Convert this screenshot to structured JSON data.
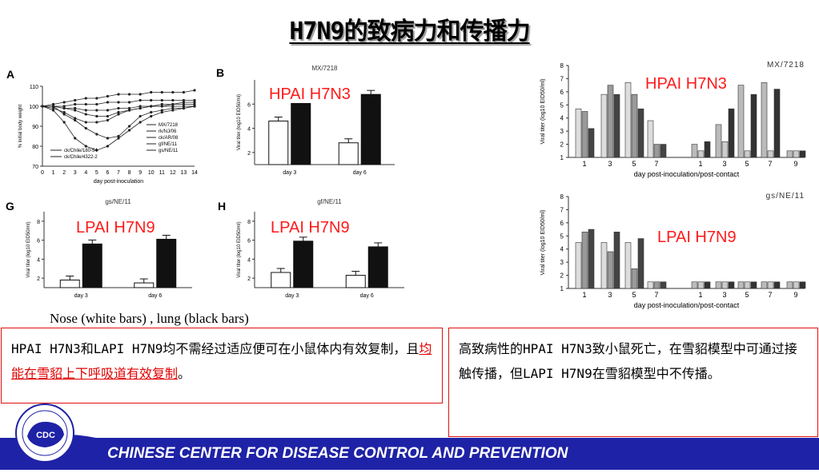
{
  "title": "H7N9的致病力和传播力",
  "panelA": {
    "letter": "A",
    "ylabel": "% initial body weight",
    "xlabel": "day post-inoculation",
    "yticks": [
      "70",
      "80",
      "90",
      "100",
      "110"
    ],
    "xticks": [
      "0",
      "1",
      "2",
      "3",
      "4",
      "5",
      "6",
      "7",
      "8",
      "9",
      "10",
      "11",
      "12",
      "13",
      "14"
    ],
    "legend_right": [
      "MX/7218",
      "rk/NJ/06",
      "ck/AR/08",
      "gf/NE/11",
      "gs/NE/11"
    ],
    "legend_left": [
      "ck/Chile/180-54",
      "ck/Chile/4322-2"
    ]
  },
  "panelB": {
    "letter": "B",
    "title": "MX/7218",
    "ylabel": "Viral titer (log10 EID50/ml)",
    "yticks": [
      "2",
      "4",
      "6"
    ],
    "xticks": [
      "day 3",
      "day 6"
    ]
  },
  "panelG": {
    "letter": "G",
    "title": "gs/NE/11",
    "ylabel": "Viral titer (log10 EID50/ml)",
    "yticks": [
      "2",
      "4",
      "6",
      "8"
    ],
    "xticks": [
      "day 3",
      "day 6"
    ]
  },
  "panelH": {
    "letter": "H",
    "title": "gf/NE/11",
    "ylabel": "Viral titer (log10 EID50/ml)",
    "yticks": [
      "2",
      "4",
      "6",
      "8"
    ],
    "xticks": [
      "day 3",
      "day 6"
    ]
  },
  "panelTR": {
    "title": "MX/7218",
    "ylabel": "Viral titer (log10 EID50/ml)",
    "yticks": [
      "1",
      "2",
      "3",
      "4",
      "5",
      "6",
      "7",
      "8"
    ],
    "xticks": [
      "1",
      "3",
      "5",
      "7",
      "1",
      "3",
      "5",
      "7",
      "9"
    ],
    "xlabel": "day post-inoculation/post-contact"
  },
  "panelBR": {
    "title": "gs/NE/11",
    "ylabel": "Viral titer (log10 EID50/ml)",
    "yticks": [
      "1",
      "2",
      "3",
      "4",
      "5",
      "6",
      "7",
      "8"
    ],
    "xticks": [
      "1",
      "3",
      "5",
      "7",
      "1",
      "3",
      "5",
      "7",
      "9"
    ],
    "xlabel": "day post-inoculation/post-contact"
  },
  "labels": {
    "hpai_b": "HPAI H7N3",
    "hpai_tr": "HPAI H7N3",
    "lpai_g": "LPAI H7N9",
    "lpai_h": "LPAI H7N9",
    "lpai_br": "LPAI H7N9"
  },
  "caption": "Nose (white bars) , lung (black bars)",
  "box_left": {
    "text1": "HPAI H7N3和LAPI H7N9均不需经过适应便可在小鼠体内有效复制，且",
    "highlight": "均能在雪貂上下呼吸道有效复制",
    "text2": "。"
  },
  "box_right": {
    "text": "高致病性的HPAI H7N3致小鼠死亡，在雪貂模型中可通过接触传播，但LAPI H7N9在雪貂模型中不传播。"
  },
  "footer": {
    "text": "CHINESE CENTER FOR DISEASE CONTROL AND PREVENTION",
    "logo_text": "CDC"
  },
  "chart_data": [
    {
      "panel": "B",
      "type": "bar",
      "categories": [
        "day 3",
        "day 6"
      ],
      "ylim": [
        1,
        8
      ],
      "series": [
        {
          "name": "Nose",
          "values": [
            4.6,
            2.8
          ]
        },
        {
          "name": "Lung",
          "values": [
            6.6,
            6.8
          ]
        }
      ]
    },
    {
      "panel": "G",
      "type": "bar",
      "categories": [
        "day 3",
        "day 6"
      ],
      "ylim": [
        1,
        9
      ],
      "series": [
        {
          "name": "Nose",
          "values": [
            1.8,
            1.5
          ]
        },
        {
          "name": "Lung",
          "values": [
            5.6,
            6.1
          ]
        }
      ]
    },
    {
      "panel": "H",
      "type": "bar",
      "categories": [
        "day 3",
        "day 6"
      ],
      "ylim": [
        1,
        9
      ],
      "series": [
        {
          "name": "Nose",
          "values": [
            2.6,
            2.3
          ]
        },
        {
          "name": "Lung",
          "values": [
            5.9,
            5.3
          ]
        }
      ]
    },
    {
      "panel": "TR",
      "type": "bar",
      "categories": [
        "1",
        "3",
        "5",
        "7",
        "1",
        "3",
        "5",
        "7",
        "9"
      ],
      "ylim": [
        1,
        8
      ],
      "groups": [
        [
          4.7,
          4.5,
          3.2
        ],
        [
          5.8,
          6.5,
          5.8
        ],
        [
          6.7,
          5.8,
          4.7
        ],
        [
          3.8,
          2.0,
          2.0
        ],
        [
          2.0,
          1.5,
          2.2
        ],
        [
          3.5,
          2.2,
          4.7
        ],
        [
          6.5,
          1.5,
          5.8
        ],
        [
          6.7,
          1.5,
          6.2
        ],
        [
          1.5,
          1.5,
          1.5
        ]
      ]
    },
    {
      "panel": "BR",
      "type": "bar",
      "categories": [
        "1",
        "3",
        "5",
        "7",
        "1",
        "3",
        "5",
        "7",
        "9"
      ],
      "ylim": [
        1,
        8
      ],
      "groups": [
        [
          4.5,
          5.3,
          5.5
        ],
        [
          4.5,
          3.8,
          5.3
        ],
        [
          4.5,
          2.5,
          4.8
        ],
        [
          1.5,
          1.5,
          1.5
        ],
        [
          1.5,
          1.5,
          1.5
        ],
        [
          1.5,
          1.5,
          1.5
        ],
        [
          1.5,
          1.5,
          1.5
        ],
        [
          1.5,
          1.5,
          1.5
        ],
        [
          1.5,
          1.5,
          1.5
        ]
      ]
    }
  ]
}
